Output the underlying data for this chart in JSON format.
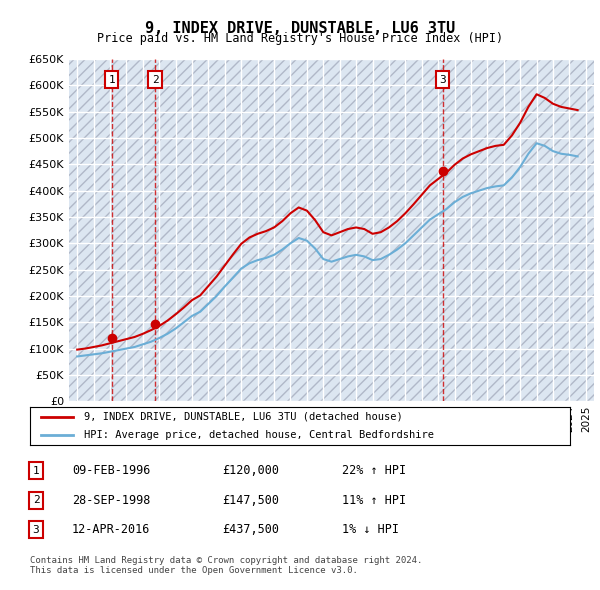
{
  "title": "9, INDEX DRIVE, DUNSTABLE, LU6 3TU",
  "subtitle": "Price paid vs. HM Land Registry's House Price Index (HPI)",
  "ylabel": "",
  "ylim": [
    0,
    650000
  ],
  "yticks": [
    0,
    50000,
    100000,
    150000,
    200000,
    250000,
    300000,
    350000,
    400000,
    450000,
    500000,
    550000,
    600000,
    650000
  ],
  "xlim_start": 1993.5,
  "xlim_end": 2025.5,
  "bg_color": "#ffffff",
  "plot_bg_color": "#dce6f1",
  "grid_color": "#ffffff",
  "hatch_color": "#c0c0c0",
  "sale_dates": [
    1996.1,
    1998.75,
    2016.28
  ],
  "sale_prices": [
    120000,
    147500,
    437500
  ],
  "sale_labels": [
    "1",
    "2",
    "3"
  ],
  "sale_label_color": "#cc0000",
  "sale_label_box_color": "#cc0000",
  "hpi_line_color": "#6baed6",
  "price_line_color": "#cc0000",
  "dashed_line_color": "#cc0000",
  "legend_label_price": "9, INDEX DRIVE, DUNSTABLE, LU6 3TU (detached house)",
  "legend_label_hpi": "HPI: Average price, detached house, Central Bedfordshire",
  "table_entries": [
    {
      "num": "1",
      "date": "09-FEB-1996",
      "price": "£120,000",
      "change": "22% ↑ HPI"
    },
    {
      "num": "2",
      "date": "28-SEP-1998",
      "price": "£147,500",
      "change": "11% ↑ HPI"
    },
    {
      "num": "3",
      "date": "12-APR-2016",
      "price": "£437,500",
      "change": "1% ↓ HPI"
    }
  ],
  "footer": "Contains HM Land Registry data © Crown copyright and database right 2024.\nThis data is licensed under the Open Government Licence v3.0.",
  "hpi_years": [
    1994,
    1994.5,
    1995,
    1995.5,
    1996,
    1996.5,
    1997,
    1997.5,
    1998,
    1998.5,
    1999,
    1999.5,
    2000,
    2000.5,
    2001,
    2001.5,
    2002,
    2002.5,
    2003,
    2003.5,
    2004,
    2004.5,
    2005,
    2005.5,
    2006,
    2006.5,
    2007,
    2007.5,
    2008,
    2008.5,
    2009,
    2009.5,
    2010,
    2010.5,
    2011,
    2011.5,
    2012,
    2012.5,
    2013,
    2013.5,
    2014,
    2014.5,
    2015,
    2015.5,
    2016,
    2016.5,
    2017,
    2017.5,
    2018,
    2018.5,
    2019,
    2019.5,
    2020,
    2020.5,
    2021,
    2021.5,
    2022,
    2022.5,
    2023,
    2023.5,
    2024,
    2024.5
  ],
  "hpi_values": [
    85000,
    87000,
    89000,
    91000,
    94000,
    97000,
    100000,
    103000,
    108000,
    113000,
    120000,
    128000,
    138000,
    150000,
    162000,
    170000,
    185000,
    200000,
    218000,
    235000,
    252000,
    262000,
    268000,
    272000,
    278000,
    288000,
    300000,
    310000,
    305000,
    290000,
    270000,
    265000,
    270000,
    275000,
    278000,
    275000,
    268000,
    270000,
    278000,
    288000,
    300000,
    315000,
    330000,
    345000,
    355000,
    365000,
    378000,
    388000,
    395000,
    400000,
    405000,
    408000,
    410000,
    425000,
    445000,
    470000,
    490000,
    485000,
    475000,
    470000,
    468000,
    465000
  ],
  "price_years": [
    1994,
    1994.5,
    1995,
    1995.5,
    1996,
    1996.5,
    1997,
    1997.5,
    1998,
    1998.5,
    1999,
    1999.5,
    2000,
    2000.5,
    2001,
    2001.5,
    2002,
    2002.5,
    2003,
    2003.5,
    2004,
    2004.5,
    2005,
    2005.5,
    2006,
    2006.5,
    2007,
    2007.5,
    2008,
    2008.5,
    2009,
    2009.5,
    2010,
    2010.5,
    2011,
    2011.5,
    2012,
    2012.5,
    2013,
    2013.5,
    2014,
    2014.5,
    2015,
    2015.5,
    2016,
    2016.5,
    2017,
    2017.5,
    2018,
    2018.5,
    2019,
    2019.5,
    2020,
    2020.5,
    2021,
    2021.5,
    2022,
    2022.5,
    2023,
    2023.5,
    2024,
    2024.5
  ],
  "price_values": [
    98000,
    100000,
    103000,
    106000,
    110000,
    114000,
    118000,
    122000,
    128000,
    135000,
    143000,
    153000,
    165000,
    178000,
    192000,
    201000,
    219000,
    237000,
    258000,
    279000,
    299000,
    311000,
    318000,
    323000,
    330000,
    342000,
    357000,
    368000,
    362000,
    344000,
    321000,
    315000,
    321000,
    327000,
    330000,
    327000,
    318000,
    321000,
    330000,
    342000,
    357000,
    374000,
    392000,
    410000,
    422000,
    434000,
    449000,
    461000,
    469000,
    475000,
    481000,
    485000,
    487000,
    505000,
    529000,
    559000,
    583000,
    576000,
    565000,
    559000,
    556000,
    553000
  ]
}
